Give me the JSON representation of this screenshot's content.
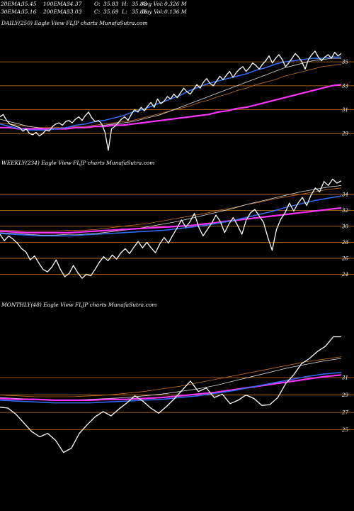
{
  "header": {
    "row1": [
      {
        "label": "20EMA:",
        "value": "35.45"
      },
      {
        "label": "100EMA:",
        "value": "34.37"
      },
      {
        "label": "O:",
        "value": "35.83"
      },
      {
        "label": "H:",
        "value": "35.83"
      },
      {
        "label": "Avg Vol:",
        "value": "0.326  M"
      }
    ],
    "row2": [
      {
        "label": "30EMA:",
        "value": "35.16"
      },
      {
        "label": "200EMA:",
        "value": "33.03"
      },
      {
        "label": "C:",
        "value": "35.69"
      },
      {
        "label": "L:",
        "value": "35.66"
      },
      {
        "label": "Day Vol:",
        "value": "0.136  M"
      }
    ]
  },
  "colors": {
    "background": "#000000",
    "price": "#ffffff",
    "gridline": "#d07a1a",
    "ema_fast": "#2f6fff",
    "ema_slow": "#ff33ff",
    "ema_mid": "#dddddd",
    "ema_long": "#c87020"
  },
  "chart_data": [
    {
      "type": "line",
      "title": "DAILY(250) Eagle  View  FLJP charts MunafaSutra.com",
      "yticks": [
        35,
        33,
        31,
        29
      ],
      "ylim": [
        28.3,
        37.8
      ],
      "grid": true,
      "series": [
        {
          "id": "price",
          "values": [
            30.4,
            30.6,
            30.1,
            29.8,
            29.7,
            29.6,
            29.5,
            29.2,
            29.4,
            29.0,
            28.9,
            29.1,
            28.8,
            29.0,
            29.3,
            29.2,
            29.6,
            29.8,
            29.9,
            29.7,
            30.0,
            30.1,
            29.9,
            30.2,
            30.4,
            30.1,
            30.5,
            30.8,
            30.3,
            30.0,
            30.1,
            29.8,
            29.1,
            27.6,
            29.4,
            29.6,
            29.9,
            30.2,
            30.4,
            30.1,
            30.6,
            31.0,
            30.8,
            31.2,
            30.9,
            31.3,
            31.6,
            31.2,
            31.9,
            31.5,
            31.7,
            32.1,
            31.9,
            32.3,
            32.0,
            32.4,
            32.8,
            32.5,
            32.3,
            32.7,
            33.1,
            32.8,
            33.3,
            33.6,
            33.2,
            33.0,
            33.4,
            33.8,
            33.5,
            33.9,
            34.2,
            33.7,
            34.1,
            34.4,
            34.6,
            34.2,
            34.5,
            34.9,
            34.7,
            34.4,
            34.8,
            35.1,
            35.5,
            34.9,
            35.3,
            35.6,
            35.2,
            34.6,
            34.9,
            35.3,
            35.7,
            35.4,
            35.0,
            34.4,
            35.2,
            35.6,
            35.9,
            35.4,
            35.1,
            35.4,
            35.6,
            35.3,
            35.8,
            35.5,
            35.69
          ]
        },
        {
          "id": "ema_mid",
          "values": [
            30.2,
            30.0,
            29.8,
            29.6,
            29.5,
            29.4,
            29.4,
            29.4,
            29.5,
            29.5,
            29.6,
            29.7,
            29.8,
            29.9,
            30.0,
            30.2,
            30.4,
            30.6,
            30.9,
            31.2,
            31.5,
            31.8,
            32.1,
            32.4,
            32.7,
            33.0,
            33.3,
            33.6,
            33.9,
            34.2,
            34.5,
            34.7,
            34.9,
            35.1,
            35.2,
            35.3,
            35.3
          ]
        },
        {
          "id": "ema_long",
          "values": [
            29.9,
            29.8,
            29.7,
            29.6,
            29.5,
            29.5,
            29.5,
            29.5,
            29.6,
            29.6,
            29.7,
            29.8,
            29.9,
            30.0,
            30.1,
            30.3,
            30.5,
            30.7,
            30.9,
            31.1,
            31.3,
            31.6,
            31.8,
            32.1,
            32.3,
            32.6,
            32.8,
            33.1,
            33.3,
            33.5,
            33.8,
            34.0,
            34.2,
            34.4,
            34.6,
            34.7,
            34.8
          ]
        },
        {
          "id": "ema_fast",
          "values": [
            29.8,
            29.6,
            29.4,
            29.3,
            29.3,
            29.3,
            29.4,
            29.5,
            29.7,
            29.8,
            30.0,
            30.1,
            30.3,
            30.5,
            30.8,
            31.0,
            31.3,
            31.6,
            31.9,
            32.2,
            32.6,
            32.9,
            33.2,
            33.4,
            33.6,
            33.8,
            34.0,
            34.3,
            34.5,
            34.8,
            35.0,
            35.1,
            35.2,
            35.3,
            35.3,
            35.4,
            35.4
          ]
        },
        {
          "id": "ema_slow",
          "values": [
            29.5,
            29.5,
            29.4,
            29.4,
            29.4,
            29.4,
            29.4,
            29.4,
            29.5,
            29.5,
            29.6,
            29.6,
            29.7,
            29.7,
            29.8,
            29.9,
            30.0,
            30.1,
            30.2,
            30.3,
            30.4,
            30.5,
            30.6,
            30.8,
            30.9,
            31.1,
            31.2,
            31.4,
            31.6,
            31.8,
            32.0,
            32.2,
            32.4,
            32.6,
            32.8,
            33.0,
            33.1
          ]
        }
      ]
    },
    {
      "type": "line",
      "title": "WEEKLY(234) Eagle  View  FLJP charts MunafaSutra.com",
      "yticks": [
        34,
        32,
        30,
        28,
        26,
        24
      ],
      "ylim": [
        22.8,
        37.0
      ],
      "grid": true,
      "series": [
        {
          "id": "price",
          "values": [
            29.0,
            28.2,
            28.8,
            28.4,
            27.9,
            27.2,
            26.8,
            25.8,
            26.3,
            25.4,
            24.6,
            24.3,
            24.9,
            25.8,
            24.6,
            23.7,
            24.1,
            25.1,
            24.2,
            23.5,
            24.0,
            23.8,
            24.6,
            25.5,
            26.2,
            25.7,
            26.4,
            25.9,
            26.7,
            27.2,
            26.6,
            27.4,
            28.1,
            27.3,
            28.0,
            27.3,
            26.7,
            27.8,
            28.6,
            27.9,
            28.9,
            29.8,
            30.8,
            29.9,
            30.6,
            31.6,
            29.9,
            28.8,
            29.6,
            30.4,
            31.4,
            30.6,
            29.2,
            30.3,
            31.1,
            30.1,
            29.0,
            30.8,
            31.7,
            32.1,
            31.3,
            30.5,
            28.6,
            27.0,
            29.6,
            30.9,
            31.7,
            32.9,
            31.9,
            32.9,
            33.6,
            32.6,
            33.9,
            34.8,
            34.3,
            35.6,
            35.1,
            35.9,
            35.4,
            35.69
          ]
        },
        {
          "id": "ema_mid",
          "values": [
            29.2,
            29.1,
            29.0,
            28.9,
            28.9,
            29.0,
            29.0,
            29.1,
            29.3,
            29.5,
            29.7,
            30.0,
            30.3,
            30.6,
            31.0,
            31.4,
            31.8,
            32.2,
            32.7,
            33.1,
            33.5,
            33.9,
            34.3,
            34.6,
            34.9,
            35.1
          ]
        },
        {
          "id": "ema_long",
          "values": [
            29.5,
            29.5,
            29.4,
            29.4,
            29.4,
            29.5,
            29.5,
            29.6,
            29.8,
            30.0,
            30.2,
            30.4,
            30.7,
            31.0,
            31.3,
            31.6,
            32.0,
            32.3,
            32.7,
            33.0,
            33.4,
            33.7,
            34.0,
            34.3,
            34.6,
            34.8
          ]
        },
        {
          "id": "ema_fast",
          "values": [
            29.1,
            29.0,
            28.9,
            28.8,
            28.8,
            28.8,
            28.9,
            29.0,
            29.1,
            29.2,
            29.3,
            29.4,
            29.5,
            29.7,
            29.9,
            30.1,
            30.4,
            30.7,
            31.1,
            31.5,
            31.9,
            32.4,
            32.8,
            33.2,
            33.5,
            33.8
          ]
        },
        {
          "id": "ema_slow",
          "values": [
            29.4,
            29.3,
            29.2,
            29.2,
            29.2,
            29.2,
            29.3,
            29.4,
            29.5,
            29.6,
            29.7,
            29.8,
            29.9,
            30.0,
            30.1,
            30.3,
            30.5,
            30.7,
            30.9,
            31.1,
            31.3,
            31.5,
            31.7,
            31.9,
            32.1,
            32.3
          ]
        }
      ]
    },
    {
      "type": "line",
      "title": "MONTHLY(48) Eagle  View  FLJP charts MunafaSutra.com",
      "yticks": [
        31,
        29,
        27,
        25
      ],
      "ylim": [
        22.2,
        38.5
      ],
      "grid": true,
      "series": [
        {
          "id": "price",
          "values": [
            27.6,
            27.5,
            26.8,
            25.8,
            24.8,
            24.2,
            24.6,
            23.8,
            22.4,
            22.9,
            24.6,
            25.6,
            26.5,
            27.1,
            26.6,
            27.4,
            28.1,
            28.9,
            28.3,
            27.5,
            26.9,
            27.7,
            28.6,
            29.6,
            30.6,
            29.4,
            29.8,
            28.7,
            29.1,
            28.0,
            28.4,
            29.0,
            28.6,
            27.8,
            27.9,
            28.7,
            30.3,
            31.3,
            32.6,
            33.2,
            34.0,
            34.6,
            35.69,
            35.69
          ]
        },
        {
          "id": "ema_mid",
          "values": [
            28.7,
            28.6,
            28.5,
            28.4,
            28.4,
            28.5,
            28.6,
            28.7,
            28.9,
            29.1,
            29.4,
            29.7,
            30.1,
            30.6,
            31.1,
            31.6,
            32.1,
            32.5,
            32.9,
            33.2
          ]
        },
        {
          "id": "ema_long",
          "values": [
            29.0,
            28.9,
            28.8,
            28.8,
            28.8,
            28.9,
            29.0,
            29.2,
            29.4,
            29.7,
            30.0,
            30.4,
            30.8,
            31.2,
            31.6,
            32.0,
            32.4,
            32.8,
            33.1,
            33.4
          ]
        },
        {
          "id": "ema_fast",
          "values": [
            28.4,
            28.3,
            28.2,
            28.1,
            28.1,
            28.1,
            28.2,
            28.3,
            28.4,
            28.5,
            28.7,
            28.9,
            29.2,
            29.5,
            29.9,
            30.3,
            30.7,
            31.1,
            31.4,
            31.6
          ]
        },
        {
          "id": "ema_slow",
          "values": [
            28.6,
            28.5,
            28.5,
            28.4,
            28.4,
            28.4,
            28.5,
            28.5,
            28.6,
            28.7,
            28.9,
            29.1,
            29.3,
            29.6,
            29.9,
            30.2,
            30.5,
            30.8,
            31.1,
            31.3
          ]
        }
      ]
    }
  ]
}
